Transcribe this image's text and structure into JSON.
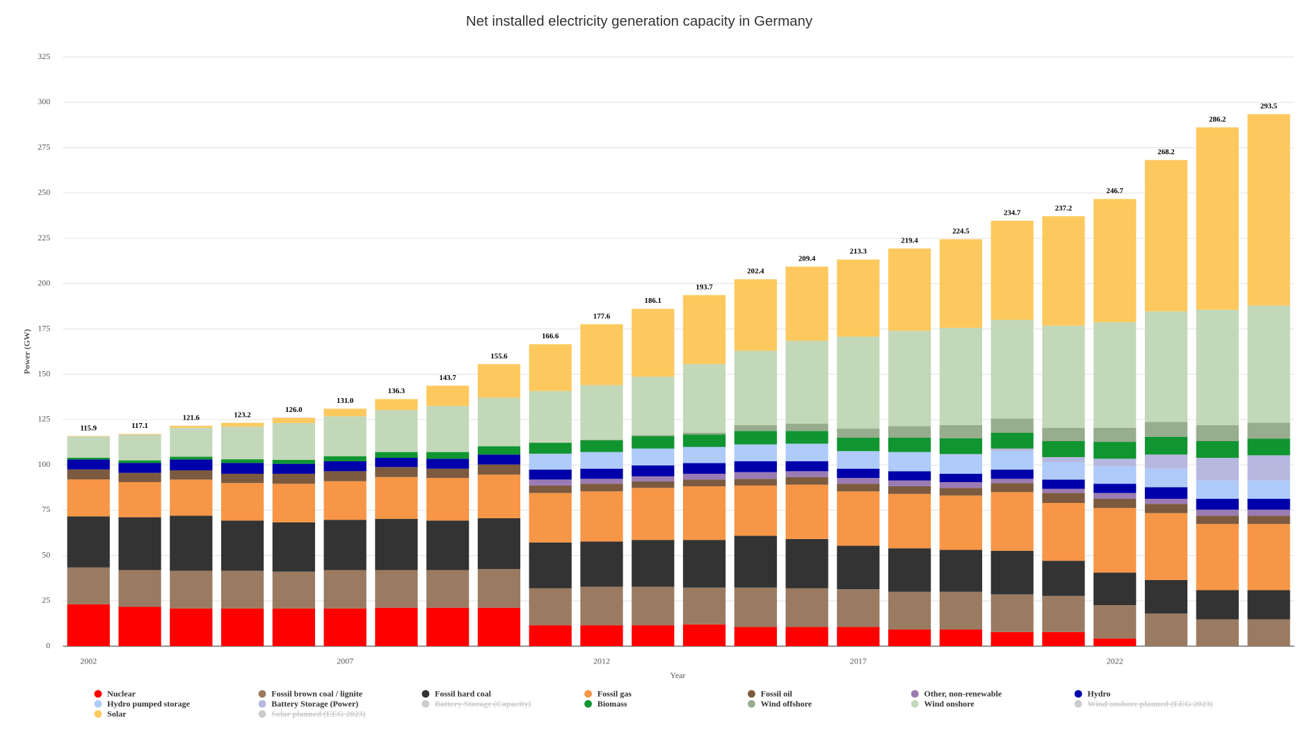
{
  "chart_data": {
    "type": "stacked-bar",
    "title": "Net installed electricity generation capacity in Germany",
    "xlabel": "Year",
    "ylabel": "Power (GW)",
    "x": [
      2002,
      2003,
      2004,
      2005,
      2006,
      2007,
      2008,
      2009,
      2010,
      2011,
      2012,
      2013,
      2014,
      2015,
      2016,
      2017,
      2018,
      2019,
      2020,
      2021,
      2022,
      2023,
      2024,
      2025
    ],
    "xlim": [
      2001.5,
      2025.5
    ],
    "xticks": [
      2002,
      2007,
      2012,
      2017,
      2022
    ],
    "ylim": [
      0,
      325
    ],
    "yticks": [
      0,
      25,
      50,
      75,
      100,
      125,
      150,
      175,
      200,
      225,
      250,
      275,
      300,
      325
    ],
    "grid": true,
    "legend": "bottom",
    "totals": [
      115.9,
      117.1,
      121.6,
      123.2,
      126.0,
      131.0,
      136.3,
      143.7,
      155.6,
      166.6,
      177.6,
      186.1,
      193.7,
      202.4,
      209.4,
      213.3,
      219.4,
      224.5,
      234.7,
      237.2,
      246.7,
      268.2,
      286.2,
      293.5
    ],
    "totals_labels": [
      "115.9",
      "117.1",
      "121.6",
      "123.2",
      "126.0",
      "131.0",
      "136.3",
      "143.7",
      "155.6",
      "166.6",
      "177.6",
      "186.1",
      "193.7",
      "202.4",
      "209.4",
      "213.3",
      "219.4",
      "224.5",
      "234.7",
      "237.2",
      "246.7",
      "268.2",
      "286.2",
      "293.5"
    ],
    "series": [
      {
        "name": "Nuclear",
        "color": "#ff0000",
        "values": [
          23.1,
          21.7,
          20.8,
          20.8,
          20.8,
          20.8,
          21.2,
          21.2,
          21.2,
          11.5,
          11.5,
          11.5,
          12.0,
          10.6,
          10.6,
          10.6,
          9.2,
          9.2,
          7.8,
          7.8,
          4.2,
          0,
          0,
          0
        ]
      },
      {
        "name": "Fossil brown coal / lignite",
        "color": "#9a7b62",
        "values": [
          20.3,
          20.3,
          20.8,
          20.8,
          20.3,
          21.2,
          20.8,
          20.8,
          21.3,
          20.4,
          21.3,
          21.3,
          20.3,
          21.7,
          21.3,
          20.8,
          20.8,
          20.8,
          20.8,
          19.9,
          18.4,
          18.0,
          14.8,
          14.8
        ]
      },
      {
        "name": "Fossil hard coal",
        "color": "#333333",
        "values": [
          28.2,
          29.1,
          30.4,
          27.7,
          27.2,
          27.7,
          28.2,
          27.3,
          28.1,
          25.3,
          24.9,
          25.8,
          26.3,
          28.6,
          27.2,
          24.0,
          24.0,
          23.1,
          24.0,
          19.4,
          18.0,
          18.5,
          16.1,
          16.1
        ]
      },
      {
        "name": "Fossil gas",
        "color": "#f79646",
        "values": [
          20.4,
          19.4,
          19.9,
          20.7,
          21.3,
          21.3,
          23.1,
          23.5,
          24.0,
          27.3,
          27.7,
          28.7,
          29.6,
          27.7,
          30.0,
          30.0,
          30.0,
          30.0,
          32.4,
          31.9,
          35.6,
          36.9,
          36.5,
          36.5
        ]
      },
      {
        "name": "Fossil oil",
        "color": "#7b5a3f",
        "values": [
          5.5,
          5.1,
          5.1,
          5.1,
          5.5,
          5.5,
          5.5,
          5.1,
          5.6,
          4.1,
          4.2,
          3.6,
          3.7,
          3.7,
          4.2,
          4.2,
          4.2,
          4.2,
          5.0,
          5.5,
          5.1,
          5.1,
          4.6,
          4.6
        ]
      },
      {
        "name": "Other, non-renewable",
        "color": "#9b7bb3",
        "values": [
          0,
          0,
          0,
          0,
          0,
          0,
          0,
          0,
          0,
          3.3,
          2.7,
          2.8,
          3.2,
          3.7,
          3.2,
          3.2,
          3.2,
          3.2,
          2.3,
          2.3,
          3.2,
          2.8,
          3.3,
          3.3
        ]
      },
      {
        "name": "Hydro",
        "color": "#0000aa",
        "values": [
          5.5,
          5.5,
          6.0,
          6.0,
          5.5,
          5.5,
          5.1,
          5.5,
          5.5,
          5.5,
          5.6,
          6.0,
          5.9,
          6.0,
          5.5,
          5.1,
          5.1,
          4.6,
          5.1,
          5.1,
          5.1,
          6.4,
          6.0,
          6.0
        ]
      },
      {
        "name": "Hydro pumped storage",
        "color": "#aecbfa",
        "values": [
          0,
          0,
          0,
          0,
          0,
          0,
          0,
          0,
          0,
          8.8,
          9.2,
          9.3,
          8.9,
          9.3,
          9.7,
          9.7,
          10.6,
          10.6,
          10.2,
          9.7,
          9.7,
          10.2,
          10.1,
          10.1
        ]
      },
      {
        "name": "Battery Storage (Power)",
        "color": "#b7b8e0",
        "values": [
          0,
          0,
          0,
          0,
          0,
          0,
          0,
          0,
          0,
          0,
          0,
          0,
          0,
          0,
          0,
          0,
          0,
          0.3,
          1.4,
          2.7,
          4.1,
          7.8,
          12.5,
          13.9
        ]
      },
      {
        "name": "Battery Storage (Capacity)",
        "color": "#cccccc",
        "hidden": true
      },
      {
        "name": "Biomass",
        "color": "#109530",
        "values": [
          1.0,
          1.4,
          1.5,
          2.0,
          2.2,
          2.8,
          3.2,
          3.7,
          4.6,
          6.0,
          6.5,
          6.9,
          6.9,
          7.4,
          7.0,
          7.4,
          7.9,
          8.7,
          8.7,
          8.8,
          9.3,
          9.7,
          9.2,
          9.2
        ]
      },
      {
        "name": "Wind offshore",
        "color": "#97ad8e",
        "values": [
          0,
          0,
          0,
          0,
          0,
          0,
          0,
          0,
          0,
          0.2,
          0.3,
          0.6,
          0.9,
          3.2,
          4.1,
          5.0,
          6.4,
          7.3,
          7.9,
          7.4,
          7.8,
          8.3,
          8.8,
          8.8
        ]
      },
      {
        "name": "Wind onshore",
        "color": "#c3d8b9",
        "values": [
          11.6,
          14.2,
          16.0,
          18.0,
          20.3,
          22.0,
          23.1,
          25.4,
          26.8,
          28.4,
          30.1,
          32.2,
          37.9,
          41.1,
          45.7,
          50.8,
          52.6,
          53.6,
          54.4,
          56.3,
          58.2,
          61.0,
          63.7,
          64.6
        ]
      },
      {
        "name": "Wind onshore planned (EEG 2023)",
        "color": "#c4c2d6",
        "hidden": true
      },
      {
        "name": "Solar",
        "color": "#fdc95f",
        "values": [
          0.3,
          0.4,
          1.1,
          2.1,
          2.9,
          4.2,
          6.1,
          11.2,
          18.5,
          25.8,
          33.6,
          37.4,
          38.1,
          39.4,
          40.9,
          42.5,
          45.4,
          48.9,
          54.7,
          60.4,
          68.0,
          83.5,
          100.6,
          105.6
        ]
      },
      {
        "name": "Solar planned (EEG 2023)",
        "color": "#cccccc",
        "hidden": true
      }
    ]
  }
}
